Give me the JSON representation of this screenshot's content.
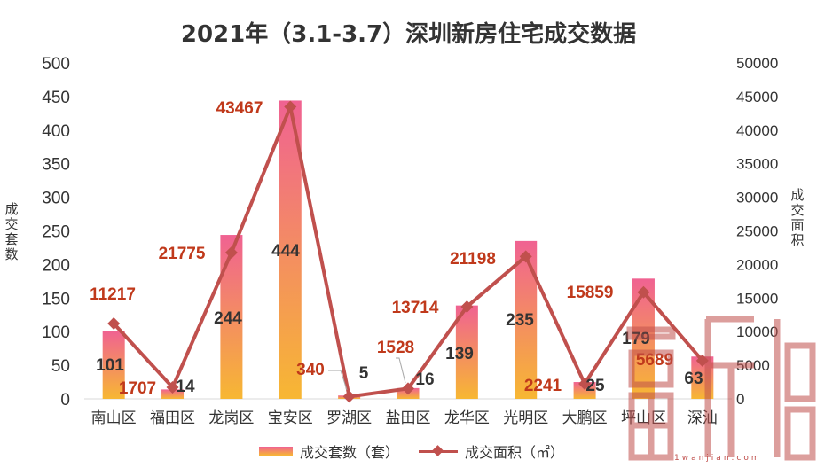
{
  "chart_data": {
    "type": "bar+line",
    "title": "2021年（3.1-3.7）深圳新房住宅成交数据",
    "categories": [
      "南山区",
      "福田区",
      "龙岗区",
      "宝安区",
      "罗湖区",
      "盐田区",
      "龙华区",
      "光明区",
      "大鹏区",
      "坪山区",
      "深汕"
    ],
    "y_left_label": "成交套数",
    "y_right_label": "成交面积",
    "y_left_ticks": [
      "0",
      "50",
      "100",
      "150",
      "200",
      "250",
      "300",
      "350",
      "400",
      "450",
      "500"
    ],
    "y_right_ticks": [
      "0",
      "5000",
      "10000",
      "15000",
      "20000",
      "25000",
      "30000",
      "35000",
      "40000",
      "45000",
      "50000"
    ],
    "ylim_left": [
      0,
      500
    ],
    "ylim_right": [
      0,
      50000
    ],
    "series": [
      {
        "name": "成交套数（套）",
        "type": "bar",
        "axis": "left",
        "values": [
          101,
          14,
          244,
          444,
          5,
          16,
          139,
          235,
          25,
          179,
          63
        ],
        "labels": [
          "101",
          "14",
          "244",
          "444",
          "5",
          "16",
          "139",
          "235",
          "25",
          "179",
          "63"
        ]
      },
      {
        "name": "成交面积（㎡）",
        "type": "line",
        "axis": "right",
        "values": [
          11217,
          1707,
          21775,
          43467,
          340,
          1528,
          13714,
          21198,
          2241,
          15859,
          5689
        ],
        "labels": [
          "11217",
          "1707",
          "21775",
          "43467",
          "340",
          "1528",
          "13714",
          "21198",
          "2241",
          "15859",
          "5689"
        ]
      }
    ],
    "colors": {
      "bar_top": "#f06292",
      "bar_bottom": "#f7b733",
      "line": "#c0504d",
      "bar_label": "#333333",
      "line_label": "#c0391b",
      "watermark": "#c0504d"
    },
    "legend_position": "bottom",
    "grid": false
  },
  "watermark": {
    "text": "1wanjian.com"
  }
}
